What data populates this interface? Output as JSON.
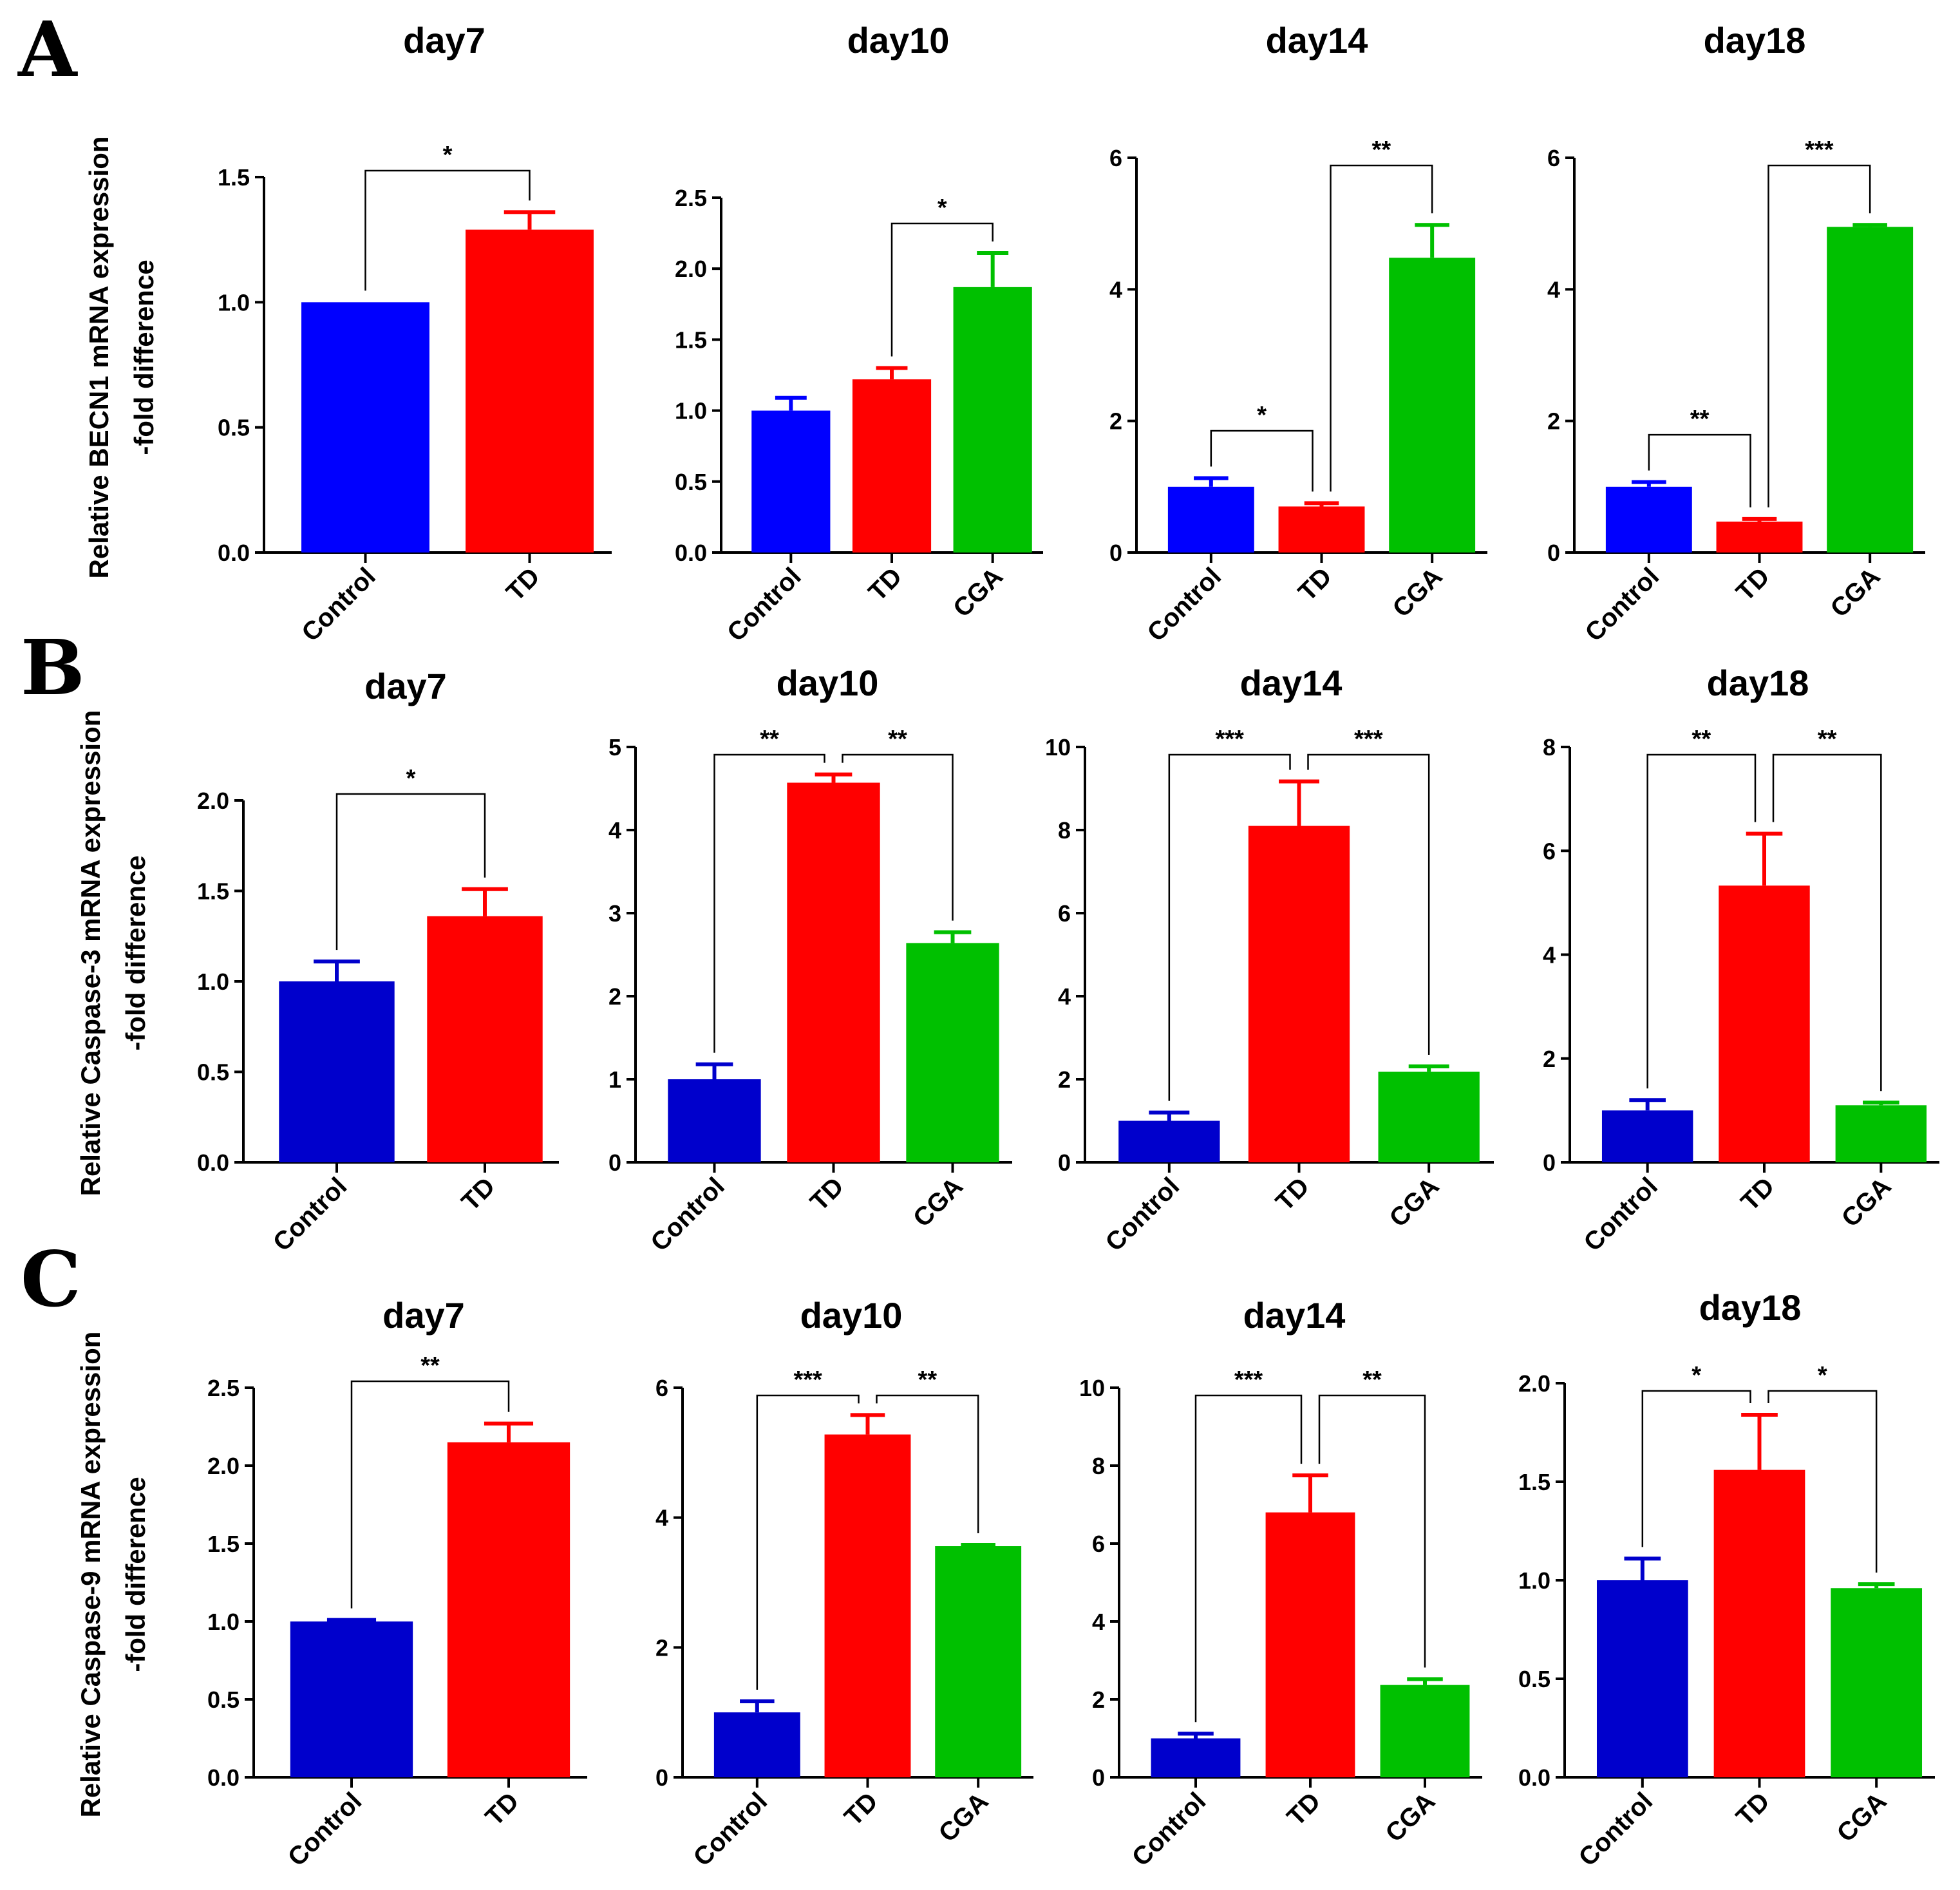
{
  "panels": [
    {
      "letter": "A",
      "ylabel_line1": "Relative BECN1 mRNA expression",
      "ylabel_line2": "-fold difference"
    },
    {
      "letter": "B",
      "ylabel_line1": "Relative Caspase-3 mRNA expression",
      "ylabel_line2": "-fold difference"
    },
    {
      "letter": "C",
      "ylabel_line1": "Relative Caspase-9 mRNA expression",
      "ylabel_line2": "-fold difference"
    }
  ],
  "colors": {
    "Control": "#0000ff",
    "Control_dark": "#0000cc",
    "TD": "#ff0000",
    "CGA": "#00c000"
  },
  "chart_data": [
    {
      "type": "bar",
      "panel": "A",
      "title": "day7",
      "categories": [
        "Control",
        "TD"
      ],
      "values": [
        1.0,
        1.29
      ],
      "errors": [
        0.0,
        0.07
      ],
      "ylim": [
        0,
        1.5
      ],
      "yticks": [
        "0.0",
        "0.5",
        "1.0",
        "1.5"
      ],
      "ytick_values": [
        0,
        0.5,
        1.0,
        1.5
      ],
      "significance": [
        {
          "from": 0,
          "to": 1,
          "label": "*"
        }
      ],
      "color_scheme": "bright"
    },
    {
      "type": "bar",
      "panel": "A",
      "title": "day10",
      "categories": [
        "Control",
        "TD",
        "CGA"
      ],
      "values": [
        1.0,
        1.22,
        1.87
      ],
      "errors": [
        0.09,
        0.08,
        0.24
      ],
      "ylim": [
        0,
        2.5
      ],
      "yticks": [
        "0.0",
        "0.5",
        "1.0",
        "1.5",
        "2.0",
        "2.5"
      ],
      "ytick_values": [
        0,
        0.5,
        1.0,
        1.5,
        2.0,
        2.5
      ],
      "significance": [
        {
          "from": 1,
          "to": 2,
          "label": "*"
        }
      ],
      "color_scheme": "bright"
    },
    {
      "type": "bar",
      "panel": "A",
      "title": "day14",
      "categories": [
        "Control",
        "TD",
        "CGA"
      ],
      "values": [
        1.0,
        0.7,
        4.48
      ],
      "errors": [
        0.13,
        0.05,
        0.5
      ],
      "ylim": [
        0,
        6
      ],
      "yticks": [
        "0",
        "2",
        "4",
        "6"
      ],
      "ytick_values": [
        0,
        2,
        4,
        6
      ],
      "significance": [
        {
          "from": 0,
          "to": 1,
          "label": "*"
        },
        {
          "from": 1,
          "to": 2,
          "label": "**"
        }
      ],
      "color_scheme": "bright"
    },
    {
      "type": "bar",
      "panel": "A",
      "title": "day18",
      "categories": [
        "Control",
        "TD",
        "CGA"
      ],
      "values": [
        1.0,
        0.47,
        4.95
      ],
      "errors": [
        0.07,
        0.04,
        0.03
      ],
      "ylim": [
        0,
        6
      ],
      "yticks": [
        "0",
        "2",
        "4",
        "6"
      ],
      "ytick_values": [
        0,
        2,
        4,
        6
      ],
      "significance": [
        {
          "from": 0,
          "to": 1,
          "label": "**"
        },
        {
          "from": 1,
          "to": 2,
          "label": "***"
        }
      ],
      "color_scheme": "bright"
    },
    {
      "type": "bar",
      "panel": "B",
      "title": "day7",
      "categories": [
        "Control",
        "TD"
      ],
      "values": [
        1.0,
        1.36
      ],
      "errors": [
        0.11,
        0.15
      ],
      "ylim": [
        0,
        2.0
      ],
      "yticks": [
        "0.0",
        "0.5",
        "1.0",
        "1.5",
        "2.0"
      ],
      "ytick_values": [
        0,
        0.5,
        1.0,
        1.5,
        2.0
      ],
      "significance": [
        {
          "from": 0,
          "to": 1,
          "label": "*"
        }
      ],
      "color_scheme": "dark"
    },
    {
      "type": "bar",
      "panel": "B",
      "title": "day10",
      "categories": [
        "Control",
        "TD",
        "CGA"
      ],
      "values": [
        1.0,
        4.57,
        2.64
      ],
      "errors": [
        0.18,
        0.1,
        0.13
      ],
      "ylim": [
        0,
        5
      ],
      "yticks": [
        "0",
        "1",
        "2",
        "3",
        "4",
        "5"
      ],
      "ytick_values": [
        0,
        1,
        2,
        3,
        4,
        5
      ],
      "significance": [
        {
          "from": 0,
          "to": 1,
          "label": "**"
        },
        {
          "from": 1,
          "to": 2,
          "label": "**"
        }
      ],
      "color_scheme": "dark"
    },
    {
      "type": "bar",
      "panel": "B",
      "title": "day14",
      "categories": [
        "Control",
        "TD",
        "CGA"
      ],
      "values": [
        1.0,
        8.1,
        2.18
      ],
      "errors": [
        0.2,
        1.07,
        0.13
      ],
      "ylim": [
        0,
        10
      ],
      "yticks": [
        "0",
        "2",
        "4",
        "6",
        "8",
        "10"
      ],
      "ytick_values": [
        0,
        2,
        4,
        6,
        8,
        10
      ],
      "significance": [
        {
          "from": 0,
          "to": 1,
          "label": "***"
        },
        {
          "from": 1,
          "to": 2,
          "label": "***"
        }
      ],
      "color_scheme": "dark"
    },
    {
      "type": "bar",
      "panel": "B",
      "title": "day18",
      "categories": [
        "Control",
        "TD",
        "CGA"
      ],
      "values": [
        1.0,
        5.33,
        1.1
      ],
      "errors": [
        0.2,
        1.0,
        0.05
      ],
      "ylim": [
        0,
        8
      ],
      "yticks": [
        "0",
        "2",
        "4",
        "6",
        "8"
      ],
      "ytick_values": [
        0,
        2,
        4,
        6,
        8
      ],
      "significance": [
        {
          "from": 0,
          "to": 1,
          "label": "**"
        },
        {
          "from": 1,
          "to": 2,
          "label": "**"
        }
      ],
      "color_scheme": "dark"
    },
    {
      "type": "bar",
      "panel": "C",
      "title": "day7",
      "categories": [
        "Control",
        "TD"
      ],
      "values": [
        1.0,
        2.15
      ],
      "errors": [
        0.01,
        0.12
      ],
      "ylim": [
        0,
        2.5
      ],
      "yticks": [
        "0.0",
        "0.5",
        "1.0",
        "1.5",
        "2.0",
        "2.5"
      ],
      "ytick_values": [
        0,
        0.5,
        1.0,
        1.5,
        2.0,
        2.5
      ],
      "significance": [
        {
          "from": 0,
          "to": 1,
          "label": "**"
        }
      ],
      "color_scheme": "dark"
    },
    {
      "type": "bar",
      "panel": "C",
      "title": "day10",
      "categories": [
        "Control",
        "TD",
        "CGA"
      ],
      "values": [
        1.0,
        5.28,
        3.56
      ],
      "errors": [
        0.17,
        0.3,
        0.02
      ],
      "ylim": [
        0,
        6
      ],
      "yticks": [
        "0",
        "2",
        "4",
        "6"
      ],
      "ytick_values": [
        0,
        2,
        4,
        6
      ],
      "significance": [
        {
          "from": 0,
          "to": 1,
          "label": "***"
        },
        {
          "from": 1,
          "to": 2,
          "label": "**"
        }
      ],
      "color_scheme": "dark"
    },
    {
      "type": "bar",
      "panel": "C",
      "title": "day14",
      "categories": [
        "Control",
        "TD",
        "CGA"
      ],
      "values": [
        1.0,
        6.8,
        2.37
      ],
      "errors": [
        0.12,
        0.95,
        0.15
      ],
      "ylim": [
        0,
        10
      ],
      "yticks": [
        "0",
        "2",
        "4",
        "6",
        "8",
        "10"
      ],
      "ytick_values": [
        0,
        2,
        4,
        6,
        8,
        10
      ],
      "significance": [
        {
          "from": 0,
          "to": 1,
          "label": "***"
        },
        {
          "from": 1,
          "to": 2,
          "label": "**"
        }
      ],
      "color_scheme": "dark"
    },
    {
      "type": "bar",
      "panel": "C",
      "title": "day18",
      "categories": [
        "Control",
        "TD",
        "CGA"
      ],
      "values": [
        1.0,
        1.56,
        0.96
      ],
      "errors": [
        0.11,
        0.28,
        0.02
      ],
      "ylim": [
        0,
        2.0
      ],
      "yticks": [
        "0.0",
        "0.5",
        "1.0",
        "1.5",
        "2.0"
      ],
      "ytick_values": [
        0,
        0.5,
        1.0,
        1.5,
        2.0
      ],
      "significance": [
        {
          "from": 0,
          "to": 1,
          "label": "*"
        },
        {
          "from": 1,
          "to": 2,
          "label": "*"
        }
      ],
      "color_scheme": "dark"
    }
  ]
}
